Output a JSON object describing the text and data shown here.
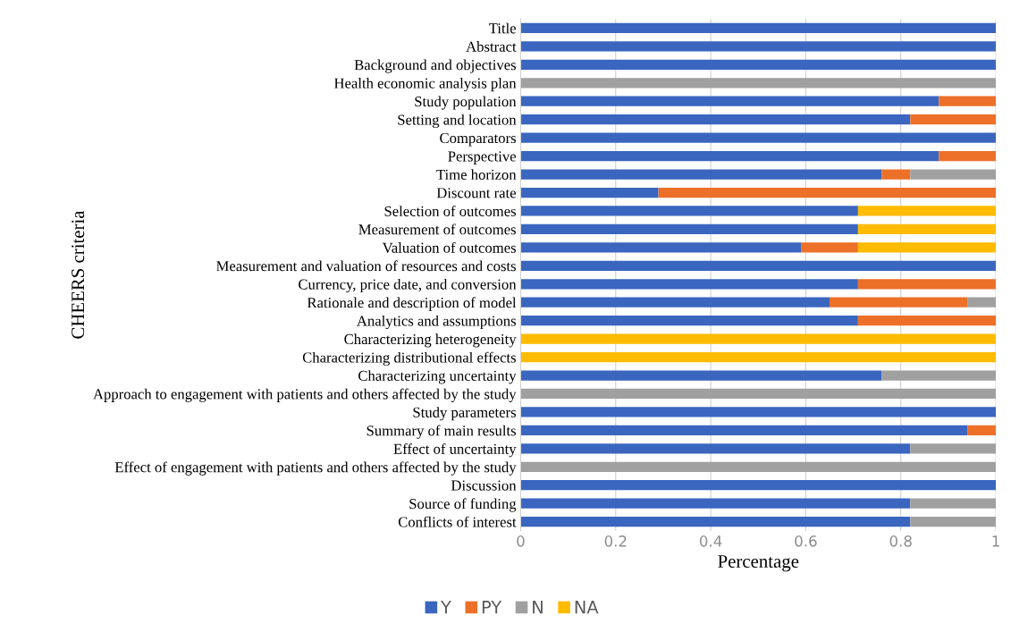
{
  "chart_data": {
    "type": "bar",
    "orientation": "horizontal",
    "stacked": true,
    "xlabel": "Percentage",
    "ylabel": "CHEERS criteria",
    "categories": [
      "Title",
      "Abstract",
      "Background and objectives",
      "Health economic analysis plan",
      "Study population",
      "Setting and location",
      "Comparators",
      "Perspective",
      "Time horizon",
      "Discount rate",
      "Selection of outcomes",
      "Measurement of outcomes",
      "Valuation of outcomes",
      "Measurement and valuation of resources and costs",
      "Currency, price date, and conversion",
      "Rationale and description of model",
      "Analytics and assumptions",
      "Characterizing heterogeneity",
      "Characterizing distributional effects",
      "Characterizing uncertainty",
      "Approach to engagement with patients and others affected by the study",
      "Study parameters",
      "Summary of main results",
      "Effect of uncertainty",
      "Effect of engagement with patients and others affected by the study",
      "Discussion",
      "Source of funding",
      "Conflicts of interest"
    ],
    "series": [
      {
        "name": "Y",
        "color": "#3a66bf",
        "values": [
          1,
          1,
          1,
          0,
          0.88,
          0.82,
          1,
          0.88,
          0.76,
          0.29,
          0.71,
          0.71,
          0.59,
          1,
          0.71,
          0.65,
          0.71,
          0,
          0,
          0.76,
          0,
          1,
          0.94,
          0.82,
          0,
          1,
          0.82,
          0.82
        ]
      },
      {
        "name": "PY",
        "color": "#ed7029",
        "values": [
          0,
          0,
          0,
          0,
          0.12,
          0.18,
          0,
          0.12,
          0.06,
          0.71,
          0,
          0,
          0.12,
          0,
          0.29,
          0.29,
          0.29,
          0,
          0,
          0,
          0,
          0,
          0.06,
          0,
          0,
          0,
          0,
          0
        ]
      },
      {
        "name": "N",
        "color": "#a0a0a0",
        "values": [
          0,
          0,
          0,
          1,
          0,
          0,
          0,
          0,
          0.18,
          0,
          0,
          0,
          0,
          0,
          0,
          0.06,
          0,
          0,
          0,
          0.24,
          1,
          0,
          0,
          0.18,
          1,
          0,
          0.18,
          0.18
        ]
      },
      {
        "name": "NA",
        "color": "#ffbb00",
        "values": [
          0,
          0,
          0,
          0,
          0,
          0,
          0,
          0,
          0,
          0,
          0.29,
          0.29,
          0.29,
          0,
          0,
          0,
          0,
          1,
          1,
          0,
          0,
          0,
          0,
          0,
          0,
          0,
          0,
          0
        ]
      }
    ],
    "xlim": [
      0,
      1
    ],
    "xticks": [
      0,
      0.2,
      0.4,
      0.6,
      0.8,
      1
    ],
    "grid": "x",
    "legend": "bottom"
  }
}
